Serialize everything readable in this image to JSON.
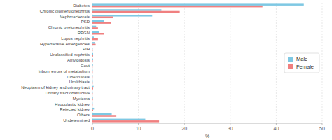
{
  "chart_data": {
    "type": "bar",
    "orientation": "horizontal",
    "categories": [
      "Diabetes",
      "Chronic glomerulonephritis",
      "Nephrosclerosis",
      "PKD",
      "Chronic pyelonephritis",
      "RPGN",
      "Lupus nephritis",
      "Hypertensive emergencies",
      "PIH",
      "Unclassified nephritis",
      "Amyloidosis",
      "Gout",
      "Inborn errors of metabolism",
      "Tuberculosis",
      "Urolithiasis",
      "Neoplasm of kidney and urinary tract",
      "Urinary tract obstructive",
      "Myeloma",
      "Hypoplastic kidney",
      "Rejected kidney",
      "Others",
      "Undetermined"
    ],
    "series": [
      {
        "name": "Male",
        "color": "#7ec8e3",
        "values": [
          46,
          15,
          13,
          2.5,
          0.8,
          1.5,
          0.3,
          0.5,
          0.05,
          0.15,
          0.15,
          0.1,
          0.05,
          0.05,
          0.05,
          0.25,
          0.05,
          0.1,
          0.05,
          0.35,
          4.2,
          11.5
        ]
      },
      {
        "name": "Female",
        "color": "#f08080",
        "values": [
          37,
          19,
          4.5,
          4.0,
          1.2,
          2.5,
          1.2,
          0.7,
          0.05,
          0.15,
          0.08,
          0.04,
          0.05,
          0.04,
          0.05,
          0.15,
          0.05,
          0.1,
          0.04,
          0.15,
          5.2,
          14.5
        ]
      }
    ],
    "xlabel": "%",
    "xlim": [
      0,
      50
    ],
    "xticks": [
      0,
      10,
      20,
      30,
      40,
      50
    ],
    "grid": true,
    "legend": "right"
  }
}
